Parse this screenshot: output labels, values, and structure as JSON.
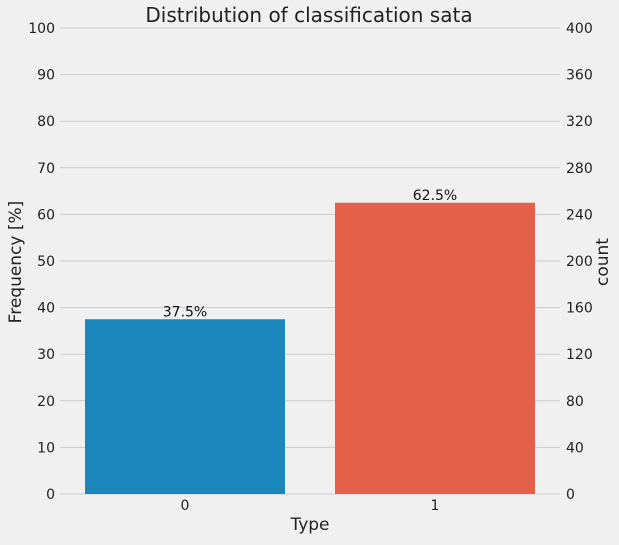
{
  "chart_data": {
    "type": "bar",
    "title": "Distribution of classification sata",
    "xlabel": "Type",
    "ylabel": "Frequency [%]",
    "ylabel_right": "count",
    "categories": [
      "0",
      "1"
    ],
    "values": [
      37.5,
      62.5
    ],
    "counts": [
      150,
      250
    ],
    "data_labels": [
      "37.5%",
      "62.5%"
    ],
    "ylim": [
      0,
      100
    ],
    "ylim_right": [
      0,
      400
    ],
    "yticks": [
      "0",
      "10",
      "20",
      "30",
      "40",
      "50",
      "60",
      "70",
      "80",
      "90",
      "100"
    ],
    "yticks_right": [
      "0",
      "40",
      "80",
      "120",
      "160",
      "200",
      "240",
      "280",
      "320",
      "360",
      "400"
    ],
    "grid": true,
    "colors": [
      "#1a86bb",
      "#e5604a"
    ],
    "background": "#f0f0f0",
    "grid_color": "#cbcbcb"
  }
}
